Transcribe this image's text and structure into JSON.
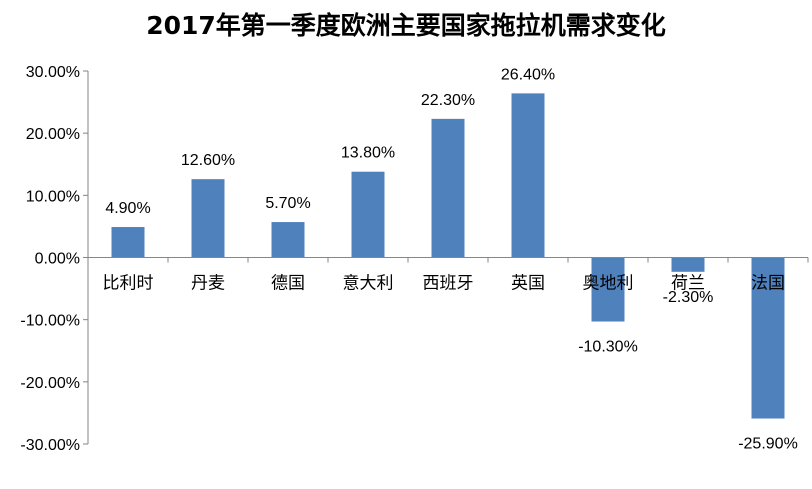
{
  "chart_data": {
    "type": "bar",
    "title": "2017年第一季度欧洲主要国家拖拉机需求变化",
    "xlabel": "",
    "ylabel": "",
    "categories": [
      "比利时",
      "丹麦",
      "德国",
      "意大利",
      "西班牙",
      "英国",
      "奥地利",
      "荷兰",
      "法国"
    ],
    "values": [
      4.9,
      12.6,
      5.7,
      13.8,
      22.3,
      26.4,
      -10.3,
      -2.3,
      -25.9
    ],
    "value_labels": [
      "4.90%",
      "12.60%",
      "5.70%",
      "13.80%",
      "22.30%",
      "26.40%",
      "-10.30%",
      "-2.30%",
      "-25.90%"
    ],
    "ylim": [
      -30,
      30
    ],
    "yticks": [
      30,
      20,
      10,
      0,
      -10,
      -20,
      -30
    ],
    "ytick_labels": [
      "30.00%",
      "20.00%",
      "10.00%",
      "0.00%",
      "-10.00%",
      "-20.00%",
      "-30.00%"
    ],
    "grid": false,
    "legend": "none",
    "bar_color": "#4F81BD",
    "axis_color": "#868686"
  }
}
